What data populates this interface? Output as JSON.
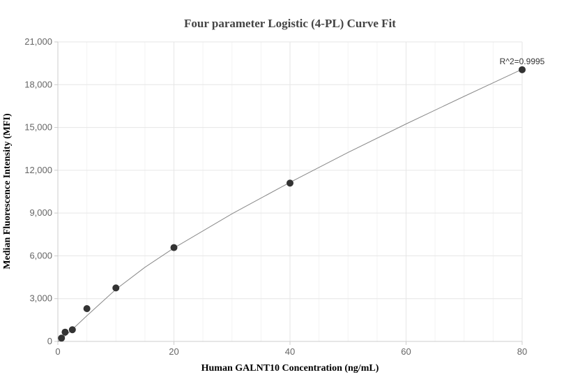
{
  "chart_data": {
    "type": "scatter",
    "title": "Four parameter Logistic (4-PL) Curve Fit",
    "xlabel": "Human GALNT10 Concentration (ng/mL)",
    "ylabel": "Median Fluorescence Intensity (MFI)",
    "xlim": [
      0,
      80
    ],
    "ylim": [
      0,
      21000
    ],
    "xticks": [
      0,
      20,
      40,
      60,
      80
    ],
    "xtick_labels": [
      "0",
      "20",
      "40",
      "60",
      "80"
    ],
    "yticks": [
      0,
      3000,
      6000,
      9000,
      12000,
      15000,
      18000,
      21000
    ],
    "ytick_labels": [
      "0",
      "3,000",
      "6,000",
      "9,000",
      "12,000",
      "15,000",
      "18,000",
      "21,000"
    ],
    "points": {
      "x": [
        0.625,
        1.25,
        2.5,
        5,
        10,
        20,
        40,
        80
      ],
      "y": [
        230,
        650,
        820,
        2300,
        3750,
        6580,
        11100,
        19050
      ]
    },
    "fit_curve": {
      "x": [
        0,
        0.625,
        1.25,
        2.5,
        5,
        10,
        15,
        20,
        30,
        40,
        50,
        60,
        70,
        80
      ],
      "y": [
        0,
        160,
        390,
        840,
        1800,
        3650,
        5200,
        6550,
        8950,
        11150,
        13250,
        15250,
        17180,
        19080
      ]
    },
    "annotation": "R^2=0.9995",
    "grid": true,
    "legend": "none",
    "colors": {
      "marker": "#333333",
      "curve": "#888888",
      "grid": "#e6e6e6",
      "axis": "#cccccc"
    }
  }
}
